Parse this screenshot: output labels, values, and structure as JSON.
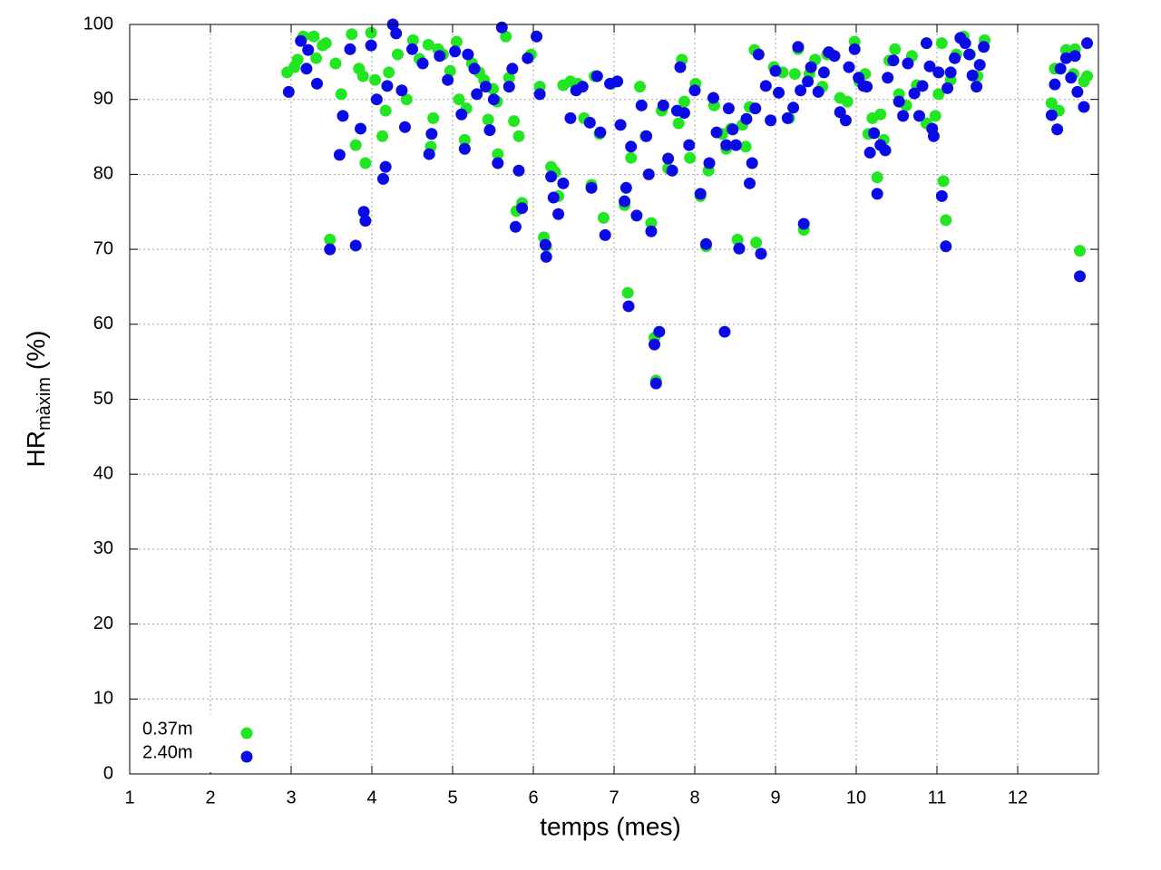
{
  "chart_data": {
    "type": "scatter",
    "xlabel": "temps (mes)",
    "ylabel": "HR",
    "ylabel_subscript": "màxim",
    "ylabel_unit": "(%)",
    "xlim": [
      1,
      13
    ],
    "xticks": [
      1,
      2,
      3,
      4,
      5,
      6,
      7,
      8,
      9,
      10,
      11,
      12
    ],
    "ylim": [
      0,
      100
    ],
    "yticks": [
      0,
      10,
      20,
      30,
      40,
      50,
      60,
      70,
      80,
      90,
      100
    ],
    "grid": true,
    "legend_position": "bottom left",
    "series": [
      {
        "name": "0.37m",
        "color": "#22e622",
        "x": [
          2.95,
          3.04,
          3.08,
          3.15,
          3.28,
          3.31,
          3.39,
          3.43,
          3.48,
          3.55,
          3.62,
          3.75,
          3.8,
          3.84,
          3.89,
          3.92,
          3.99,
          4.04,
          4.13,
          4.17,
          4.21,
          4.32,
          4.43,
          4.51,
          4.59,
          4.7,
          4.73,
          4.76,
          4.82,
          4.88,
          4.97,
          5.05,
          5.08,
          5.15,
          5.17,
          5.24,
          5.33,
          5.39,
          5.44,
          5.5,
          5.55,
          5.56,
          5.66,
          5.7,
          5.76,
          5.79,
          5.82,
          5.86,
          5.97,
          6.08,
          6.13,
          6.16,
          6.22,
          6.27,
          6.31,
          6.37,
          6.46,
          6.55,
          6.63,
          6.72,
          6.76,
          6.82,
          6.87,
          6.97,
          7.13,
          7.17,
          7.21,
          7.32,
          7.39,
          7.46,
          7.5,
          7.52,
          7.59,
          7.67,
          7.8,
          7.84,
          7.87,
          7.94,
          8.01,
          8.07,
          8.14,
          8.17,
          8.24,
          8.34,
          8.39,
          8.45,
          8.53,
          8.59,
          8.63,
          8.68,
          8.74,
          8.76,
          8.98,
          9.09,
          9.17,
          9.24,
          9.28,
          9.35,
          9.42,
          9.49,
          9.58,
          9.64,
          9.8,
          9.89,
          9.98,
          10.04,
          10.11,
          10.15,
          10.2,
          10.26,
          10.3,
          10.34,
          10.41,
          10.48,
          10.53,
          10.62,
          10.69,
          10.75,
          10.87,
          10.98,
          11.02,
          11.06,
          11.08,
          11.11,
          11.17,
          11.24,
          11.33,
          11.41,
          11.5,
          11.59,
          12.42,
          12.46,
          12.51,
          12.6,
          12.69,
          12.71,
          12.77,
          12.82,
          12.86
        ],
        "values": [
          93.6,
          94.3,
          95.3,
          98.4,
          98.4,
          95.5,
          97.2,
          97.5,
          71.3,
          94.8,
          90.7,
          98.7,
          83.9,
          94.1,
          93.1,
          81.5,
          98.9,
          92.6,
          85.1,
          88.5,
          93.6,
          96.0,
          90.0,
          97.9,
          95.4,
          97.3,
          83.7,
          87.5,
          96.7,
          96.0,
          93.8,
          97.7,
          90.0,
          84.6,
          88.8,
          94.8,
          93.6,
          92.6,
          87.3,
          91.4,
          89.7,
          82.7,
          98.4,
          92.9,
          87.1,
          75.1,
          85.1,
          76.2,
          96.0,
          91.7,
          71.6,
          70.4,
          81.0,
          80.3,
          77.1,
          91.9,
          92.4,
          92.1,
          87.5,
          78.6,
          93.1,
          85.4,
          74.2,
          92.1,
          75.9,
          64.2,
          82.2,
          91.7,
          85.1,
          73.5,
          58.2,
          52.5,
          88.5,
          80.8,
          86.8,
          95.3,
          89.7,
          82.2,
          92.1,
          77.1,
          70.4,
          80.5,
          89.2,
          85.4,
          83.4,
          86.1,
          71.3,
          86.6,
          83.7,
          89.0,
          96.6,
          70.9,
          94.3,
          93.6,
          87.5,
          93.4,
          96.7,
          72.6,
          93.4,
          95.3,
          91.7,
          96.0,
          90.2,
          89.7,
          97.7,
          92.4,
          93.4,
          85.4,
          87.5,
          79.6,
          88.0,
          84.6,
          95.2,
          96.7,
          90.7,
          89.2,
          95.8,
          91.9,
          86.8,
          87.8,
          90.7,
          97.5,
          79.1,
          73.9,
          92.6,
          96.0,
          98.4,
          96.0,
          93.1,
          97.9,
          89.5,
          94.1,
          88.5,
          96.6,
          93.4,
          96.7,
          69.8,
          92.4,
          93.1
        ]
      },
      {
        "name": "2.40m",
        "color": "#0a0ae6",
        "x": [
          2.97,
          3.12,
          3.21,
          3.19,
          3.32,
          3.48,
          3.6,
          3.64,
          3.73,
          3.8,
          3.86,
          3.9,
          3.92,
          3.99,
          4.06,
          4.14,
          4.17,
          4.19,
          4.26,
          4.3,
          4.37,
          4.41,
          4.5,
          4.63,
          4.71,
          4.74,
          4.84,
          4.94,
          5.03,
          5.11,
          5.15,
          5.19,
          5.27,
          5.3,
          5.41,
          5.46,
          5.51,
          5.56,
          5.61,
          5.7,
          5.74,
          5.78,
          5.82,
          5.86,
          5.93,
          6.04,
          6.08,
          6.15,
          6.16,
          6.22,
          6.25,
          6.31,
          6.37,
          6.46,
          6.53,
          6.61,
          6.7,
          6.72,
          6.79,
          6.83,
          6.89,
          6.95,
          7.04,
          7.08,
          7.13,
          7.15,
          7.18,
          7.21,
          7.28,
          7.34,
          7.4,
          7.43,
          7.46,
          7.5,
          7.52,
          7.56,
          7.61,
          7.67,
          7.72,
          7.78,
          7.82,
          7.87,
          7.93,
          8.0,
          8.07,
          8.14,
          8.18,
          8.23,
          8.27,
          8.37,
          8.39,
          8.42,
          8.47,
          8.51,
          8.55,
          8.64,
          8.68,
          8.71,
          8.75,
          8.79,
          8.82,
          8.88,
          8.94,
          9.0,
          9.04,
          9.15,
          9.22,
          9.28,
          9.31,
          9.35,
          9.4,
          9.44,
          9.53,
          9.6,
          9.66,
          9.73,
          9.8,
          9.87,
          9.91,
          9.98,
          10.03,
          10.09,
          10.13,
          10.17,
          10.22,
          10.26,
          10.3,
          10.36,
          10.39,
          10.46,
          10.53,
          10.58,
          10.64,
          10.72,
          10.78,
          10.82,
          10.87,
          10.91,
          10.94,
          10.96,
          11.02,
          11.06,
          11.11,
          11.13,
          11.17,
          11.22,
          11.29,
          11.35,
          11.4,
          11.44,
          11.49,
          11.53,
          11.58,
          12.42,
          12.46,
          12.49,
          12.53,
          12.6,
          12.66,
          12.71,
          12.74,
          12.77,
          12.82,
          12.86
        ],
        "values": [
          91.0,
          97.8,
          96.6,
          94.1,
          92.1,
          70.0,
          82.6,
          87.8,
          96.7,
          70.5,
          86.1,
          75.0,
          73.8,
          97.2,
          90.0,
          79.4,
          81.0,
          91.8,
          100,
          98.8,
          91.2,
          86.3,
          96.7,
          94.8,
          82.7,
          85.4,
          95.8,
          92.6,
          96.4,
          88.0,
          83.4,
          96.0,
          94.1,
          90.7,
          91.7,
          85.9,
          90.0,
          81.5,
          99.6,
          91.7,
          94.1,
          73.0,
          80.5,
          75.5,
          95.5,
          98.4,
          90.7,
          70.6,
          69.0,
          79.7,
          76.9,
          74.7,
          78.8,
          87.5,
          91.2,
          91.7,
          86.9,
          78.2,
          93.1,
          85.6,
          71.9,
          92.1,
          92.4,
          86.6,
          76.4,
          78.2,
          62.4,
          83.7,
          74.5,
          89.2,
          85.1,
          80.0,
          72.4,
          57.3,
          52.1,
          59.0,
          89.2,
          82.1,
          80.5,
          88.5,
          94.3,
          88.2,
          83.9,
          91.2,
          77.4,
          70.7,
          81.5,
          90.2,
          85.6,
          59.0,
          83.9,
          88.8,
          86.0,
          83.9,
          70.1,
          87.4,
          78.8,
          81.5,
          88.8,
          96.0,
          69.4,
          91.8,
          87.2,
          93.8,
          90.9,
          87.5,
          88.9,
          97.0,
          91.2,
          73.4,
          92.4,
          94.3,
          91.0,
          93.6,
          96.3,
          95.8,
          88.3,
          87.2,
          94.3,
          96.7,
          92.9,
          91.8,
          91.7,
          82.9,
          85.5,
          77.4,
          83.9,
          83.2,
          92.9,
          95.2,
          89.7,
          87.8,
          94.8,
          90.8,
          87.8,
          91.8,
          97.5,
          94.4,
          86.1,
          85.1,
          93.6,
          77.1,
          70.4,
          91.5,
          93.6,
          95.5,
          98.2,
          97.5,
          96.0,
          93.2,
          91.7,
          94.6,
          97.0,
          87.9,
          92.0,
          86.0,
          94.1,
          95.5,
          92.9,
          95.8,
          91.0,
          66.4,
          89.0,
          97.5
        ]
      }
    ]
  }
}
